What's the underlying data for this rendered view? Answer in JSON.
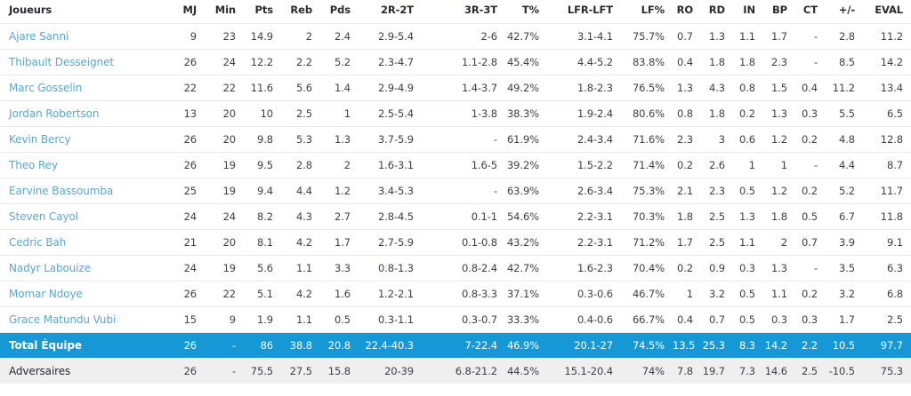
{
  "colors": {
    "accent_blue": "#1697d6",
    "player_link_blue": "#58a8d1",
    "header_text": "#2a2a31",
    "opponents_row_bg": "#efeff0",
    "row_divider": "#e8e8ea"
  },
  "table": {
    "columns": [
      {
        "key": "joueurs",
        "label": "Joueurs"
      },
      {
        "key": "mj",
        "label": "MJ"
      },
      {
        "key": "min",
        "label": "Min"
      },
      {
        "key": "pts",
        "label": "Pts"
      },
      {
        "key": "reb",
        "label": "Reb"
      },
      {
        "key": "pds",
        "label": "Pds"
      },
      {
        "key": "2r-2t",
        "label": "2R-2T"
      },
      {
        "key": "3r-3t",
        "label": "3R-3T"
      },
      {
        "key": "t-pct",
        "label": "T%"
      },
      {
        "key": "lfr-lft",
        "label": "LFR-LFT"
      },
      {
        "key": "lf-pct",
        "label": "LF%"
      },
      {
        "key": "ro",
        "label": "RO"
      },
      {
        "key": "rd",
        "label": "RD"
      },
      {
        "key": "in",
        "label": "IN"
      },
      {
        "key": "bp",
        "label": "BP"
      },
      {
        "key": "ct",
        "label": "CT"
      },
      {
        "key": "plus-minus",
        "label": "+/-"
      },
      {
        "key": "eval",
        "label": "EVAL"
      }
    ],
    "rows": [
      {
        "type": "player",
        "name": "Ajare Sanni",
        "stats": [
          "9",
          "23",
          "14.9",
          "2",
          "2.4",
          "2.9-5.4",
          "2-6",
          "42.7%",
          "3.1-4.1",
          "75.7%",
          "0.7",
          "1.3",
          "1.1",
          "1.7",
          "-",
          "2.8",
          "11.2"
        ]
      },
      {
        "type": "player",
        "name": "Thibault Desseignet",
        "stats": [
          "26",
          "24",
          "12.2",
          "2.2",
          "5.2",
          "2.3-4.7",
          "1.1-2.8",
          "45.4%",
          "4.4-5.2",
          "83.8%",
          "0.4",
          "1.8",
          "1.8",
          "2.3",
          "-",
          "8.5",
          "14.2"
        ]
      },
      {
        "type": "player",
        "name": "Marc Gosselin",
        "stats": [
          "22",
          "22",
          "11.6",
          "5.6",
          "1.4",
          "2.9-4.9",
          "1.4-3.7",
          "49.2%",
          "1.8-2.3",
          "76.5%",
          "1.3",
          "4.3",
          "0.8",
          "1.5",
          "0.4",
          "11.2",
          "13.4"
        ]
      },
      {
        "type": "player",
        "name": "Jordan Robertson",
        "stats": [
          "13",
          "20",
          "10",
          "2.5",
          "1",
          "2.5-5.4",
          "1-3.8",
          "38.3%",
          "1.9-2.4",
          "80.6%",
          "0.8",
          "1.8",
          "0.2",
          "1.3",
          "0.3",
          "5.5",
          "6.5"
        ]
      },
      {
        "type": "player",
        "name": "Kevin Bercy",
        "stats": [
          "26",
          "20",
          "9.8",
          "5.3",
          "1.3",
          "3.7-5.9",
          "-",
          "61.9%",
          "2.4-3.4",
          "71.6%",
          "2.3",
          "3",
          "0.6",
          "1.2",
          "0.2",
          "4.8",
          "12.8"
        ]
      },
      {
        "type": "player",
        "name": "Theo Rey",
        "stats": [
          "26",
          "19",
          "9.5",
          "2.8",
          "2",
          "1.6-3.1",
          "1.6-5",
          "39.2%",
          "1.5-2.2",
          "71.4%",
          "0.2",
          "2.6",
          "1",
          "1",
          "-",
          "4.4",
          "8.7"
        ]
      },
      {
        "type": "player",
        "name": "Earvine Bassoumba",
        "stats": [
          "25",
          "19",
          "9.4",
          "4.4",
          "1.2",
          "3.4-5.3",
          "-",
          "63.9%",
          "2.6-3.4",
          "75.3%",
          "2.1",
          "2.3",
          "0.5",
          "1.2",
          "0.2",
          "5.2",
          "11.7"
        ]
      },
      {
        "type": "player",
        "name": "Steven Cayol",
        "stats": [
          "24",
          "24",
          "8.2",
          "4.3",
          "2.7",
          "2.8-4.5",
          "0.1-1",
          "54.6%",
          "2.2-3.1",
          "70.3%",
          "1.8",
          "2.5",
          "1.3",
          "1.8",
          "0.5",
          "6.7",
          "11.8"
        ]
      },
      {
        "type": "player",
        "name": "Cedric Bah",
        "stats": [
          "21",
          "20",
          "8.1",
          "4.2",
          "1.7",
          "2.7-5.9",
          "0.1-0.8",
          "43.2%",
          "2.2-3.1",
          "71.2%",
          "1.7",
          "2.5",
          "1.1",
          "2",
          "0.7",
          "3.9",
          "9.1"
        ]
      },
      {
        "type": "player",
        "name": "Nadyr Labouize",
        "stats": [
          "24",
          "19",
          "5.6",
          "1.1",
          "3.3",
          "0.8-1.3",
          "0.8-2.4",
          "42.7%",
          "1.6-2.3",
          "70.4%",
          "0.2",
          "0.9",
          "0.3",
          "1.3",
          "-",
          "3.5",
          "6.3"
        ]
      },
      {
        "type": "player",
        "name": "Momar Ndoye",
        "stats": [
          "26",
          "22",
          "5.1",
          "4.2",
          "1.6",
          "1.2-2.1",
          "0.8-3.3",
          "37.1%",
          "0.3-0.6",
          "46.7%",
          "1",
          "3.2",
          "0.5",
          "1.1",
          "0.2",
          "3.2",
          "6.8"
        ]
      },
      {
        "type": "player",
        "name": "Grace Matundu Vubi",
        "stats": [
          "15",
          "9",
          "1.9",
          "1.1",
          "0.5",
          "0.3-1.1",
          "0.3-0.7",
          "33.3%",
          "0.4-0.6",
          "66.7%",
          "0.4",
          "0.7",
          "0.5",
          "0.3",
          "0.3",
          "1.7",
          "2.5"
        ]
      },
      {
        "type": "total",
        "name": "Total Équipe",
        "stats": [
          "26",
          "-",
          "86",
          "38.8",
          "20.8",
          "22.4-40.3",
          "7-22.4",
          "46.9%",
          "20.1-27",
          "74.5%",
          "13.5",
          "25.3",
          "8.3",
          "14.2",
          "2.2",
          "10.5",
          "97.7"
        ]
      },
      {
        "type": "opponents",
        "name": "Adversaires",
        "stats": [
          "26",
          "-",
          "75.5",
          "27.5",
          "15.8",
          "20-39",
          "6.8-21.2",
          "44.5%",
          "15.1-20.4",
          "74%",
          "7.8",
          "19.7",
          "7.3",
          "14.6",
          "2.5",
          "-10.5",
          "75.3"
        ]
      }
    ]
  }
}
